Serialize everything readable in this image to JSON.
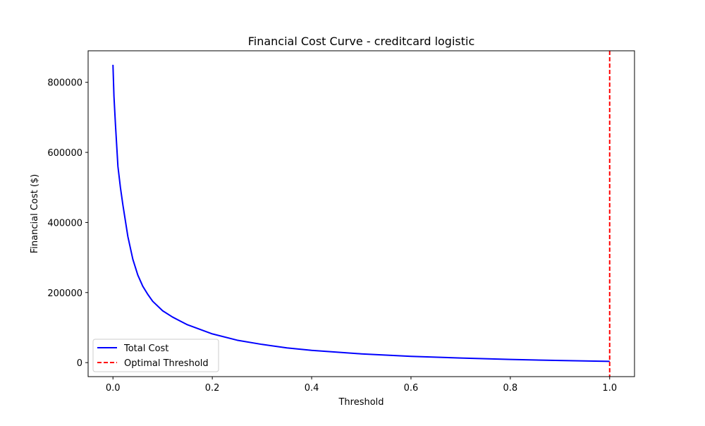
{
  "chart_data": {
    "type": "line",
    "title": "Financial Cost Curve - creditcard logistic",
    "xlabel": "Threshold",
    "ylabel": "Financial Cost ($)",
    "xlim": [
      -0.05,
      1.05
    ],
    "ylim": [
      -40000,
      890000
    ],
    "xticks": [
      0.0,
      0.2,
      0.4,
      0.6,
      0.8,
      1.0
    ],
    "xtick_labels": [
      "0.0",
      "0.2",
      "0.4",
      "0.6",
      "0.8",
      "1.0"
    ],
    "yticks": [
      0,
      200000,
      400000,
      600000,
      800000
    ],
    "ytick_labels": [
      "0",
      "200000",
      "400000",
      "600000",
      "800000"
    ],
    "grid": false,
    "legend_position": "lower-left",
    "series": [
      {
        "name": "Total Cost",
        "style": "solid",
        "color": "#0000ff",
        "x": [
          0.0,
          0.002,
          0.005,
          0.01,
          0.015,
          0.02,
          0.03,
          0.04,
          0.05,
          0.06,
          0.07,
          0.08,
          0.1,
          0.12,
          0.15,
          0.2,
          0.25,
          0.3,
          0.35,
          0.4,
          0.5,
          0.6,
          0.7,
          0.8,
          0.9,
          1.0
        ],
        "y": [
          850000,
          760000,
          680000,
          560000,
          500000,
          450000,
          360000,
          295000,
          250000,
          218000,
          195000,
          175000,
          148000,
          130000,
          108000,
          82000,
          64000,
          52000,
          42000,
          35000,
          25000,
          18000,
          13000,
          9000,
          6000,
          3500
        ]
      }
    ],
    "vlines": [
      {
        "name": "Optimal Threshold",
        "x": 1.0,
        "style": "dashed",
        "color": "#ff0000"
      }
    ]
  }
}
